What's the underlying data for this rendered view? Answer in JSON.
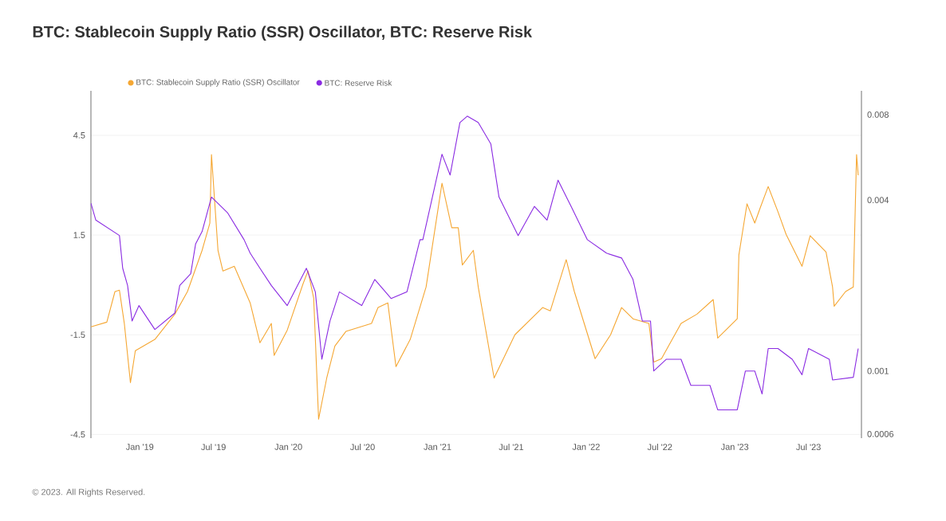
{
  "chart_data": {
    "type": "line",
    "title": "BTC: Stablecoin Supply Ratio (SSR) Oscillator, BTC: Reserve Risk",
    "annotations": [
      "© 2023. All Rights Reserved."
    ],
    "xlim": [
      "2018-09-03",
      "2023-11-08"
    ],
    "xticks": [
      {
        "value": "2019-01-01",
        "label": "Jan '19"
      },
      {
        "value": "2019-07-01",
        "label": "Jul '19"
      },
      {
        "value": "2020-01-01",
        "label": "Jan '20"
      },
      {
        "value": "2020-07-01",
        "label": "Jul '20"
      },
      {
        "value": "2021-01-01",
        "label": "Jan '21"
      },
      {
        "value": "2021-07-01",
        "label": "Jul '21"
      },
      {
        "value": "2022-01-01",
        "label": "Jan '22"
      },
      {
        "value": "2022-07-01",
        "label": "Jul '22"
      },
      {
        "value": "2023-01-01",
        "label": "Jan '23"
      },
      {
        "value": "2023-07-01",
        "label": "Jul '23"
      }
    ],
    "ylim": [
      -4.61,
      5.84
    ],
    "yticks": [
      -4.5,
      -1.5,
      1.5,
      4.5
    ],
    "y2lim": [
      0.00058,
      0.0097
    ],
    "y2ticks": [
      0.0006,
      0.001,
      0.004,
      0.008
    ],
    "log": "y2",
    "grid": "y",
    "legend": "top left",
    "series": [
      {
        "name": "BTC: Stablecoin Supply Ratio (SSR) Oscillator",
        "color": "#f5a733",
        "x": [
          "2018-09-03",
          "2018-10-12",
          "2018-11-01",
          "2018-11-12",
          "2018-11-24",
          "2018-12-09",
          "2018-12-21",
          "2019-02-07",
          "2019-03-28",
          "2019-04-28",
          "2019-06-03",
          "2019-06-22",
          "2019-06-26",
          "2019-07-12",
          "2019-07-24",
          "2019-08-21",
          "2019-09-29",
          "2019-10-23",
          "2019-11-20",
          "2019-11-27",
          "2019-12-29",
          "2020-02-06",
          "2020-02-18",
          "2020-03-03",
          "2020-03-15",
          "2020-04-04",
          "2020-04-24",
          "2020-05-21",
          "2020-07-23",
          "2020-08-08",
          "2020-09-01",
          "2020-09-21",
          "2020-10-26",
          "2020-12-04",
          "2020-12-16",
          "2021-01-12",
          "2021-02-05",
          "2021-02-21",
          "2021-03-03",
          "2021-03-30",
          "2021-04-11",
          "2021-05-20",
          "2021-07-10",
          "2021-09-16",
          "2021-10-05",
          "2021-11-13",
          "2021-12-03",
          "2022-01-23",
          "2022-03-02",
          "2022-03-29",
          "2022-04-26",
          "2022-06-04",
          "2022-06-16",
          "2022-07-05",
          "2022-08-22",
          "2022-09-30",
          "2022-11-09",
          "2022-11-20",
          "2023-01-07",
          "2023-01-11",
          "2023-01-19",
          "2023-01-31",
          "2023-02-19",
          "2023-03-05",
          "2023-03-24",
          "2023-04-17",
          "2023-05-07",
          "2023-06-15",
          "2023-07-05",
          "2023-08-13",
          "2023-08-29",
          "2023-09-02",
          "2023-09-30",
          "2023-10-19",
          "2023-10-27",
          "2023-10-31"
        ],
        "values": [
          -1.26,
          -1.12,
          -0.2,
          -0.16,
          -1.16,
          -2.94,
          -1.98,
          -1.64,
          -0.88,
          -0.2,
          1.04,
          1.86,
          3.92,
          1.04,
          0.42,
          0.56,
          -0.54,
          -1.74,
          -1.16,
          -2.12,
          -1.36,
          0.04,
          0.42,
          -0.4,
          -4.04,
          -2.8,
          -1.84,
          -1.4,
          -1.16,
          -0.68,
          -0.54,
          -2.46,
          -1.64,
          -0.06,
          0.9,
          3.06,
          1.72,
          1.72,
          0.6,
          1.04,
          -0.06,
          -2.8,
          -1.5,
          -0.68,
          -0.78,
          0.76,
          -0.2,
          -2.22,
          -1.5,
          -0.68,
          -1.02,
          -1.16,
          -2.32,
          -2.22,
          -1.16,
          -0.88,
          -0.44,
          -1.6,
          -1.02,
          0.9,
          1.52,
          2.44,
          1.86,
          2.34,
          2.96,
          2.2,
          1.52,
          0.56,
          1.48,
          0.99,
          -0.06,
          -0.64,
          -0.2,
          -0.06,
          3.92,
          3.3
        ]
      },
      {
        "name": "BTC: Reserve Risk",
        "color": "#8a2be2",
        "axis": "y2",
        "x": [
          "2018-09-03",
          "2018-09-15",
          "2018-11-12",
          "2018-11-20",
          "2018-12-02",
          "2018-12-13",
          "2018-12-30",
          "2019-02-07",
          "2019-03-28",
          "2019-04-09",
          "2019-05-06",
          "2019-05-18",
          "2019-06-03",
          "2019-06-26",
          "2019-08-05",
          "2019-09-14",
          "2019-09-29",
          "2019-10-23",
          "2019-11-20",
          "2019-12-29",
          "2020-02-14",
          "2020-03-07",
          "2020-03-23",
          "2020-04-12",
          "2020-05-05",
          "2020-06-29",
          "2020-07-31",
          "2020-09-09",
          "2020-10-18",
          "2020-11-19",
          "2020-11-26",
          "2021-01-12",
          "2021-02-01",
          "2021-02-25",
          "2021-03-15",
          "2021-04-11",
          "2021-05-12",
          "2021-06-01",
          "2021-07-18",
          "2021-08-27",
          "2021-09-27",
          "2021-10-24",
          "2021-11-25",
          "2022-01-04",
          "2022-02-20",
          "2022-03-29",
          "2022-04-26",
          "2022-05-19",
          "2022-06-08",
          "2022-06-16",
          "2022-07-17",
          "2022-08-22",
          "2022-09-15",
          "2022-11-01",
          "2022-11-20",
          "2023-01-07",
          "2023-01-27",
          "2023-02-19",
          "2023-03-09",
          "2023-03-24",
          "2023-04-17",
          "2023-05-22",
          "2023-06-15",
          "2023-07-01",
          "2023-08-21",
          "2023-08-29",
          "2023-10-19",
          "2023-10-31"
        ],
        "values": [
          0.0039,
          0.0034,
          0.003,
          0.0023,
          0.002,
          0.0015,
          0.0017,
          0.0014,
          0.0016,
          0.002,
          0.0022,
          0.0028,
          0.0031,
          0.0041,
          0.0036,
          0.0029,
          0.0026,
          0.0023,
          0.002,
          0.0017,
          0.0023,
          0.0019,
          0.0011,
          0.0015,
          0.0019,
          0.0017,
          0.0021,
          0.0018,
          0.0019,
          0.0029,
          0.0029,
          0.0058,
          0.0049,
          0.0075,
          0.0079,
          0.0075,
          0.0063,
          0.0041,
          0.003,
          0.0038,
          0.0034,
          0.0047,
          0.0038,
          0.0029,
          0.0026,
          0.0025,
          0.0021,
          0.0015,
          0.0015,
          0.001,
          0.0011,
          0.0011,
          0.00089,
          0.00089,
          0.00073,
          0.00073,
          0.001,
          0.001,
          0.00083,
          0.0012,
          0.0012,
          0.0011,
          0.00097,
          0.0012,
          0.0011,
          0.00093,
          0.00095,
          0.0012
        ]
      }
    ]
  }
}
